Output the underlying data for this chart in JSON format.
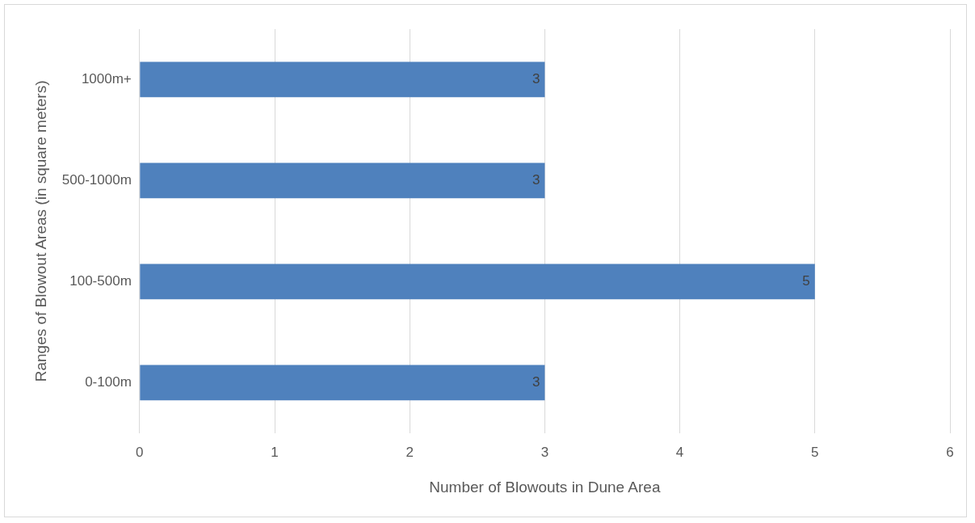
{
  "chart_data": {
    "type": "bar",
    "orientation": "horizontal",
    "xlabel": "Number of Blowouts in Dune Area",
    "ylabel": "Ranges of Blowout Areas (in square meters)",
    "categories": [
      "1000m+",
      "500-1000m",
      "100-500m",
      "0-100m"
    ],
    "values": [
      3,
      3,
      5,
      3
    ],
    "color": "#4f81bd",
    "xlim": [
      0,
      6
    ],
    "xticks": [
      0,
      1,
      2,
      3,
      4,
      5,
      6
    ],
    "grid": "x",
    "data_labels": true,
    "legend": false
  }
}
